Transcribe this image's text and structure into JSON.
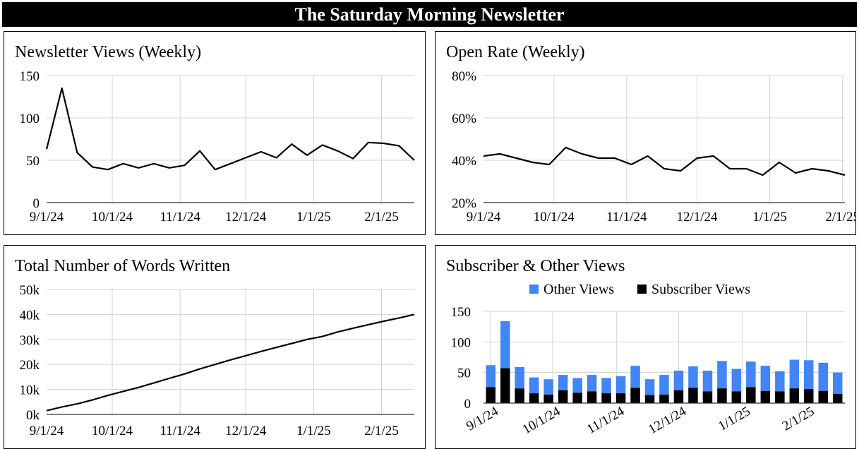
{
  "header": {
    "title": "The Saturday Morning Newsletter"
  },
  "colors": {
    "line": "#000000",
    "other_views": "#4285f4",
    "subscriber_views": "#000000",
    "grid": "#d3d3d3"
  },
  "chart_data": [
    {
      "id": "views",
      "type": "line",
      "title": "Newsletter Views (Weekly)",
      "x_ticks": [
        "9/1/24",
        "10/1/24",
        "11/1/24",
        "12/1/24",
        "1/1/25",
        "2/1/25"
      ],
      "y_ticks": [
        "0",
        "50",
        "100",
        "150"
      ],
      "ylim": [
        0,
        150
      ],
      "grid": true,
      "x": [
        "2024-09-01",
        "2024-09-08",
        "2024-09-15",
        "2024-09-22",
        "2024-09-29",
        "2024-10-06",
        "2024-10-13",
        "2024-10-20",
        "2024-10-27",
        "2024-11-03",
        "2024-11-10",
        "2024-11-17",
        "2024-11-24",
        "2024-12-01",
        "2024-12-08",
        "2024-12-15",
        "2024-12-22",
        "2024-12-29",
        "2025-01-05",
        "2025-01-12",
        "2025-01-19",
        "2025-01-26",
        "2025-02-02",
        "2025-02-09",
        "2025-02-16"
      ],
      "values": [
        63,
        135,
        59,
        42,
        39,
        46,
        41,
        46,
        41,
        44,
        61,
        39,
        46,
        53,
        60,
        53,
        69,
        56,
        68,
        61,
        52,
        71,
        70,
        67,
        50
      ]
    },
    {
      "id": "open_rate",
      "type": "line",
      "title": "Open Rate (Weekly)",
      "x_ticks": [
        "9/1/24",
        "10/1/24",
        "11/1/24",
        "12/1/24",
        "1/1/25",
        "2/1/25"
      ],
      "y_ticks": [
        "20%",
        "40%",
        "60%",
        "80%"
      ],
      "ylim": [
        20,
        80
      ],
      "grid": true,
      "x": [
        "2024-09-01",
        "2024-09-08",
        "2024-09-15",
        "2024-09-22",
        "2024-09-29",
        "2024-10-06",
        "2024-10-13",
        "2024-10-20",
        "2024-10-27",
        "2024-11-03",
        "2024-11-10",
        "2024-11-17",
        "2024-11-24",
        "2024-12-01",
        "2024-12-08",
        "2024-12-15",
        "2024-12-22",
        "2024-12-29",
        "2025-01-05",
        "2025-01-12",
        "2025-01-19",
        "2025-01-26",
        "2025-02-02"
      ],
      "values": [
        42,
        43,
        41,
        39,
        38,
        46,
        43,
        41,
        41,
        38,
        42,
        36,
        35,
        41,
        42,
        36,
        36,
        33,
        39,
        34,
        36,
        35,
        33
      ]
    },
    {
      "id": "words",
      "type": "line",
      "title": "Total Number of Words Written",
      "x_ticks": [
        "9/1/24",
        "10/1/24",
        "11/1/24",
        "12/1/24",
        "1/1/25",
        "2/1/25"
      ],
      "y_ticks": [
        "0k",
        "10k",
        "20k",
        "30k",
        "40k",
        "50k"
      ],
      "ylim": [
        0,
        50000
      ],
      "grid": true,
      "x": [
        "2024-09-01",
        "2024-09-08",
        "2024-09-15",
        "2024-09-22",
        "2024-09-29",
        "2024-10-06",
        "2024-10-13",
        "2024-10-20",
        "2024-10-27",
        "2024-11-03",
        "2024-11-10",
        "2024-11-17",
        "2024-11-24",
        "2024-12-01",
        "2024-12-08",
        "2024-12-15",
        "2024-12-22",
        "2024-12-29",
        "2025-01-05",
        "2025-01-12",
        "2025-01-19",
        "2025-01-26",
        "2025-02-02",
        "2025-02-09",
        "2025-02-16"
      ],
      "values": [
        1500,
        3000,
        4200,
        5800,
        7600,
        9200,
        10800,
        12600,
        14400,
        16200,
        18200,
        20000,
        21800,
        23500,
        25200,
        26800,
        28400,
        30000,
        31200,
        33000,
        34500,
        35900,
        37300,
        38600,
        40000
      ]
    },
    {
      "id": "sub_other",
      "type": "bar",
      "stacked": true,
      "title": "Subscriber & Other Views",
      "legend_position": "top",
      "x_ticks": [
        "9/1/24",
        "10/1/24",
        "11/1/24",
        "12/1/24",
        "1/1/25",
        "2/1/25"
      ],
      "y_ticks": [
        "0",
        "50",
        "100",
        "150"
      ],
      "ylim": [
        0,
        150
      ],
      "grid": true,
      "categories": [
        "2024-09-01",
        "2024-09-08",
        "2024-09-15",
        "2024-09-22",
        "2024-09-29",
        "2024-10-06",
        "2024-10-13",
        "2024-10-20",
        "2024-10-27",
        "2024-11-03",
        "2024-11-10",
        "2024-11-17",
        "2024-11-24",
        "2024-12-01",
        "2024-12-08",
        "2024-12-15",
        "2024-12-22",
        "2024-12-29",
        "2025-01-05",
        "2025-01-12",
        "2025-01-19",
        "2025-01-26",
        "2025-02-02",
        "2025-02-09",
        "2025-02-16"
      ],
      "series": [
        {
          "name": "Subscriber Views",
          "values": [
            26,
            57,
            24,
            16,
            14,
            21,
            17,
            19,
            16,
            16,
            25,
            13,
            14,
            21,
            25,
            19,
            24,
            19,
            26,
            20,
            19,
            24,
            23,
            20,
            15
          ]
        },
        {
          "name": "Other Views",
          "values": [
            36,
            77,
            35,
            26,
            25,
            25,
            24,
            27,
            25,
            28,
            36,
            26,
            32,
            32,
            35,
            34,
            45,
            37,
            42,
            41,
            33,
            47,
            47,
            46,
            35
          ]
        }
      ],
      "legend": [
        "Other Views",
        "Subscriber Views"
      ]
    }
  ]
}
